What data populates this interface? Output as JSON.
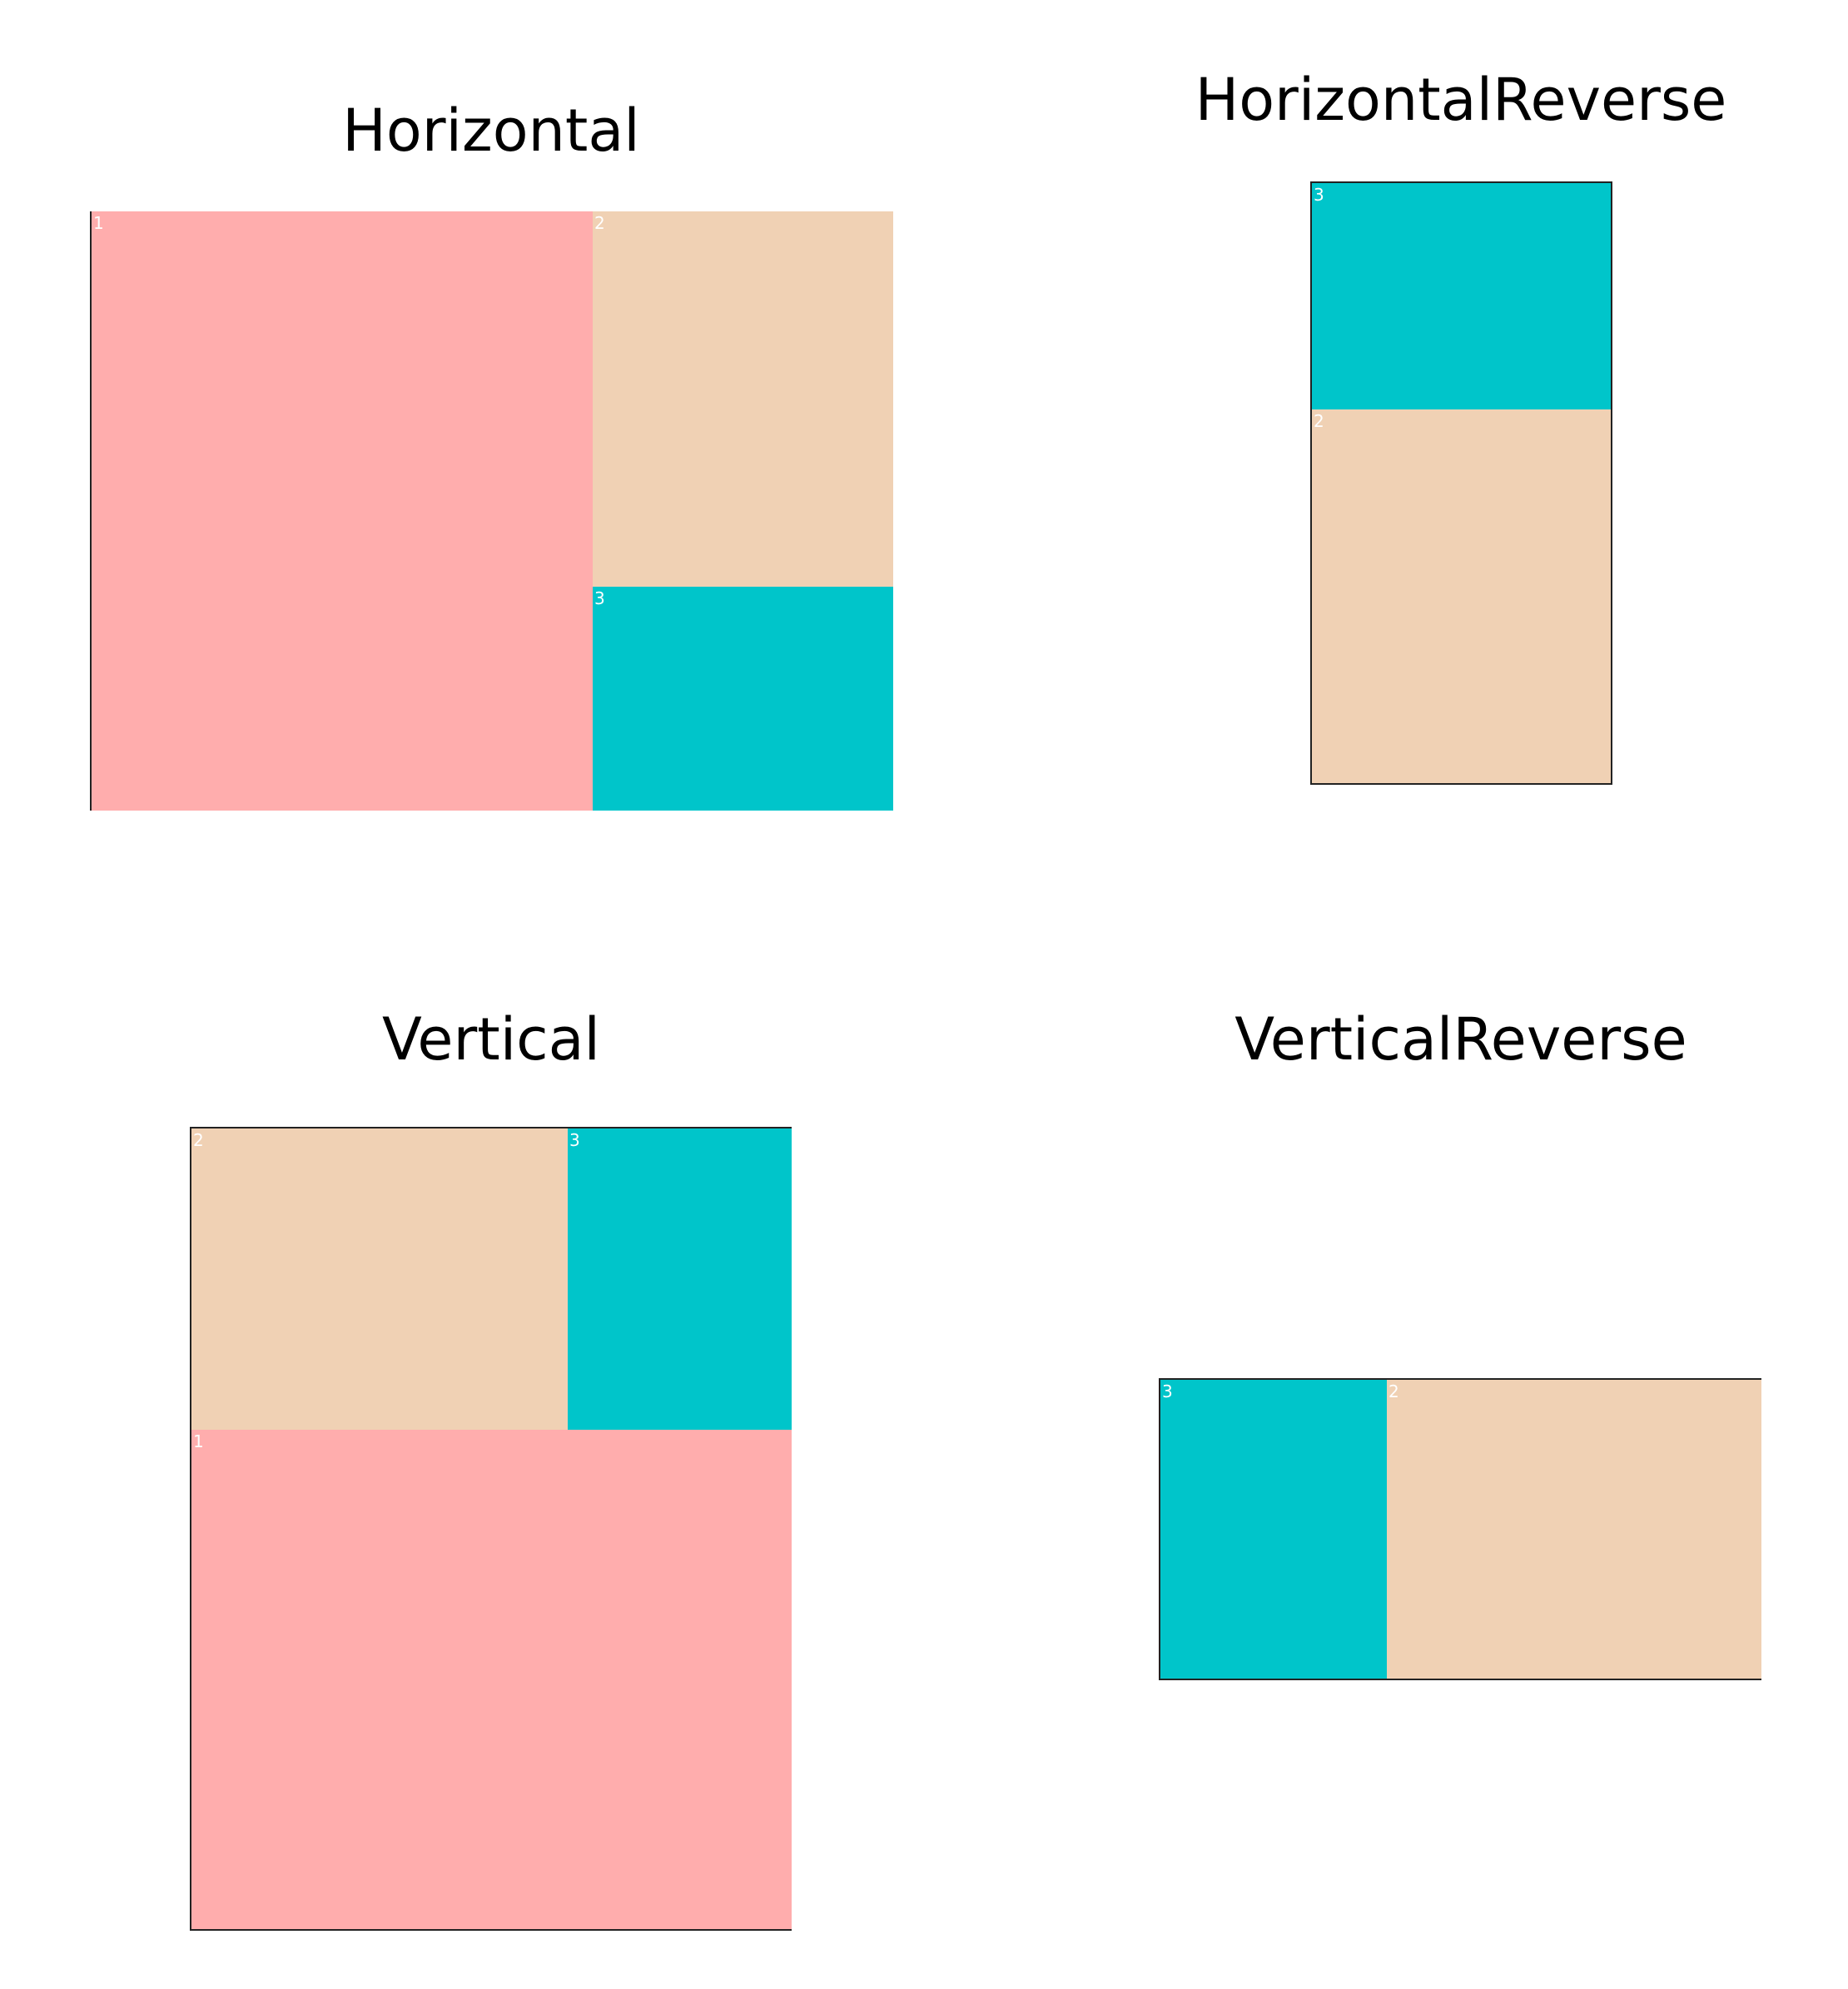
{
  "colors": {
    "pink": "#FFADAD",
    "peach": "#F0D1B4",
    "teal": "#00C5CA"
  },
  "panels": [
    {
      "title": "Horizontal",
      "cells": [
        "1",
        "2",
        "3"
      ]
    },
    {
      "title": "HorizontalReverse",
      "cells": [
        "3",
        "2"
      ]
    },
    {
      "title": "Vertical",
      "cells": [
        "2",
        "3",
        "1"
      ]
    },
    {
      "title": "VerticalReverse",
      "cells": [
        "3",
        "2"
      ]
    }
  ]
}
